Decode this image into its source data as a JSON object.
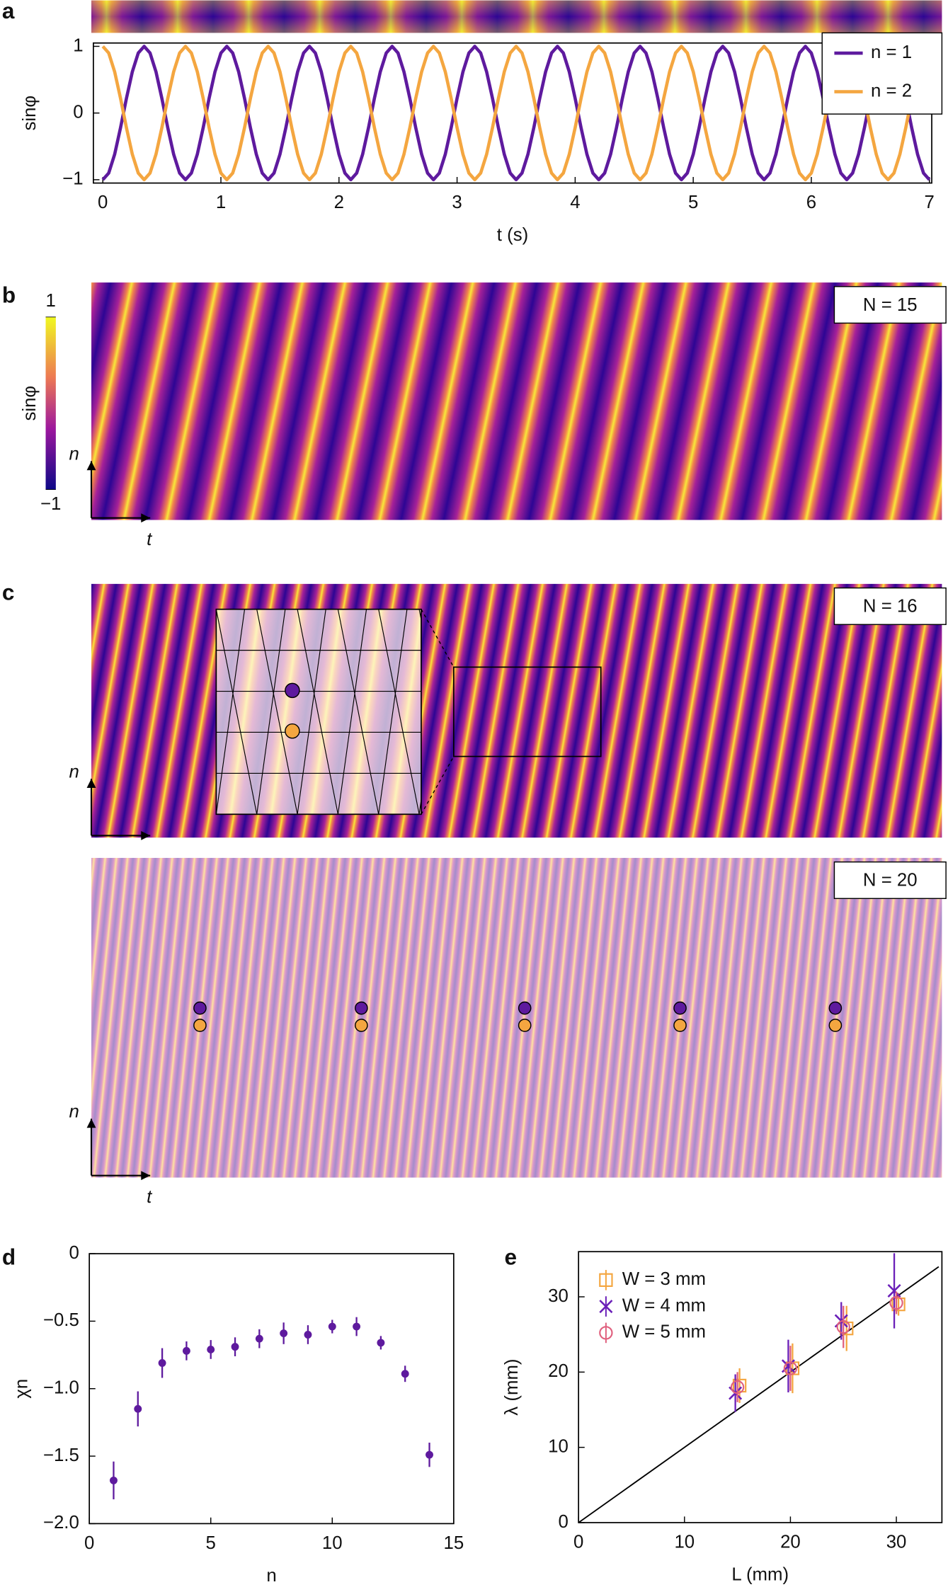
{
  "chart_data": [
    {
      "type": "line",
      "label": "a",
      "xlabel": "t (s)",
      "ylabel": "sinφ",
      "xlim": [
        -0.08,
        7.02
      ],
      "ylim": [
        -1.05,
        1.05
      ],
      "xticks": [
        0,
        1,
        2,
        3,
        4,
        5,
        6,
        7
      ],
      "yticks": [
        {
          "value": -1,
          "label": "−1"
        },
        0,
        1
      ],
      "legend": "upper right",
      "x": [
        0,
        0.05,
        0.1,
        0.15,
        0.2,
        0.25,
        0.3,
        0.35,
        0.4,
        0.45,
        0.5,
        0.55,
        0.6,
        0.65,
        0.7,
        0.75,
        0.8,
        0.85,
        0.9,
        0.95,
        1,
        1.05,
        1.1,
        1.15,
        1.2,
        1.25,
        1.3,
        1.35,
        1.4,
        1.45,
        1.5,
        1.55,
        1.6,
        1.65,
        1.7,
        1.75,
        1.8,
        1.85,
        1.9,
        1.95,
        2,
        2.05,
        2.1,
        2.15,
        2.2,
        2.25,
        2.3,
        2.35,
        2.4,
        2.45,
        2.5,
        2.55,
        2.6,
        2.65,
        2.7,
        2.75,
        2.8,
        2.85,
        2.9,
        2.95,
        3,
        3.05,
        3.1,
        3.15,
        3.2,
        3.25,
        3.3,
        3.35,
        3.4,
        3.45,
        3.5,
        3.55,
        3.6,
        3.65,
        3.7,
        3.75,
        3.8,
        3.85,
        3.9,
        3.95,
        4,
        4.05,
        4.1,
        4.15,
        4.2,
        4.25,
        4.3,
        4.35,
        4.4,
        4.45,
        4.5,
        4.55,
        4.6,
        4.65,
        4.7,
        4.75,
        4.8,
        4.85,
        4.9,
        4.95,
        5,
        5.05,
        5.1,
        5.15,
        5.2,
        5.25,
        5.3,
        5.35,
        5.4,
        5.45,
        5.5,
        5.55,
        5.6,
        5.65,
        5.7,
        5.75,
        5.8,
        5.85,
        5.9,
        5.95,
        6,
        6.05,
        6.1,
        6.15,
        6.2,
        6.25,
        6.3,
        6.35,
        6.4,
        6.45,
        6.5,
        6.55,
        6.6,
        6.65,
        6.7,
        6.75,
        6.8,
        6.85,
        6.9,
        6.95,
        7
      ],
      "series": [
        {
          "name": "n = 1",
          "color": "#5e1a9e",
          "values": [
            -1,
            -0.9,
            -0.62,
            -0.22,
            0.22,
            0.62,
            0.9,
            1,
            0.9,
            0.62,
            0.22,
            -0.22,
            -0.62,
            -0.9,
            -1,
            -0.9,
            -0.62,
            -0.22,
            0.22,
            0.62,
            0.9,
            1,
            0.9,
            0.62,
            0.22,
            -0.22,
            -0.62,
            -0.9,
            -1,
            -0.9,
            -0.62,
            -0.22,
            0.22,
            0.62,
            0.9,
            1,
            0.9,
            0.62,
            0.22,
            -0.22,
            -0.62,
            -0.9,
            -1,
            -0.9,
            -0.62,
            -0.22,
            0.22,
            0.62,
            0.9,
            1,
            0.9,
            0.62,
            0.22,
            -0.22,
            -0.62,
            -0.9,
            -1,
            -0.9,
            -0.62,
            -0.22,
            0.22,
            0.62,
            0.9,
            1,
            0.9,
            0.62,
            0.22,
            -0.22,
            -0.62,
            -0.9,
            -1,
            -0.9,
            -0.62,
            -0.22,
            0.22,
            0.62,
            0.9,
            1,
            0.9,
            0.62,
            0.22,
            -0.22,
            -0.62,
            -0.9,
            -1,
            -0.9,
            -0.62,
            -0.22,
            0.22,
            0.62,
            0.9,
            1,
            0.9,
            0.62,
            0.22,
            -0.22,
            -0.62,
            -0.9,
            -1,
            -0.9,
            -0.62,
            -0.22,
            0.22,
            0.62,
            0.9,
            1,
            0.9,
            0.62,
            0.22,
            -0.22,
            -0.62,
            -0.9,
            -1,
            -0.9,
            -0.62,
            -0.22,
            0.22,
            0.62,
            0.9,
            1,
            0.9,
            0.62,
            0.22,
            -0.22,
            -0.62,
            -0.9,
            -1,
            -0.9,
            -0.62,
            -0.22,
            0.22,
            0.62,
            0.9,
            1,
            0.9,
            0.62,
            0.22,
            -0.22,
            -0.62,
            -0.9,
            -1
          ]
        },
        {
          "name": "n = 2",
          "color": "#f4a640",
          "values": [
            1,
            0.9,
            0.62,
            0.22,
            -0.22,
            -0.62,
            -0.9,
            -1,
            -0.9,
            -0.62,
            -0.22,
            0.22,
            0.62,
            0.9,
            1,
            0.9,
            0.62,
            0.22,
            -0.22,
            -0.62,
            -0.9,
            -1,
            -0.9,
            -0.62,
            -0.22,
            0.22,
            0.62,
            0.9,
            1,
            0.9,
            0.62,
            0.22,
            -0.22,
            -0.62,
            -0.9,
            -1,
            -0.9,
            -0.62,
            -0.22,
            0.22,
            0.62,
            0.9,
            1,
            0.9,
            0.62,
            0.22,
            -0.22,
            -0.62,
            -0.9,
            -1,
            -0.9,
            -0.62,
            -0.22,
            0.22,
            0.62,
            0.9,
            1,
            0.9,
            0.62,
            0.22,
            -0.22,
            -0.62,
            -0.9,
            -1,
            -0.9,
            -0.62,
            -0.22,
            0.22,
            0.62,
            0.9,
            1,
            0.9,
            0.62,
            0.22,
            -0.22,
            -0.62,
            -0.9,
            -1,
            -0.9,
            -0.62,
            -0.22,
            0.22,
            0.62,
            0.9,
            1,
            0.9,
            0.62,
            0.22,
            -0.22,
            -0.62,
            -0.9,
            -1,
            -0.9,
            -0.62,
            -0.22,
            0.22,
            0.62,
            0.9,
            1,
            0.9,
            0.62,
            0.22,
            -0.22,
            -0.62,
            -0.9,
            -1,
            -0.9,
            -0.62,
            -0.22,
            0.22,
            0.62,
            0.9,
            1,
            0.9,
            0.62,
            0.22,
            -0.22,
            -0.62,
            -0.9,
            -1,
            -0.9,
            -0.62,
            -0.22,
            0.22,
            0.62,
            0.9,
            1,
            0.9,
            0.62,
            0.22,
            -0.22,
            -0.62,
            -0.9,
            -1,
            -0.9,
            -0.62,
            -0.22,
            0.22,
            0.62,
            0.9,
            1
          ]
        }
      ]
    },
    {
      "type": "heatmap",
      "label": "b",
      "annotation": "N = 15",
      "ylabel": "n",
      "xlabel": "t",
      "colorbar": {
        "label": "sinφ",
        "lim": [
          -1,
          1
        ],
        "ticks": [
          {
            "value": -1,
            "label": "−1"
          },
          1
        ]
      }
    },
    {
      "type": "heatmap",
      "label": "c",
      "annotation": "N = 16",
      "ylabel": "n"
    },
    {
      "type": "heatmap",
      "annotation": "N = 20",
      "ylabel": "n",
      "xlabel": "t"
    },
    {
      "type": "scatter",
      "label": "d",
      "xlabel": "n",
      "ylabel": "χn",
      "color": "#5e1a9e",
      "xlim": [
        0,
        15
      ],
      "ylim": [
        -2,
        0
      ],
      "xticks": [
        0,
        5,
        10,
        15
      ],
      "yticks": [
        {
          "value": -2,
          "label": "−2.0"
        },
        {
          "value": -1.5,
          "label": "−1.5"
        },
        {
          "value": -1,
          "label": "−1.0"
        },
        {
          "value": -0.5,
          "label": "−0.5"
        },
        0
      ],
      "x": [
        1,
        2,
        3,
        4,
        5,
        6,
        7,
        8,
        9,
        10,
        11,
        12,
        13,
        14
      ],
      "values": [
        -1.68,
        -1.15,
        -0.81,
        -0.72,
        -0.71,
        -0.69,
        -0.63,
        -0.59,
        -0.6,
        -0.54,
        -0.54,
        -0.66,
        -0.89,
        -1.49
      ],
      "errors": [
        0.14,
        0.13,
        0.11,
        0.07,
        0.07,
        0.07,
        0.07,
        0.08,
        0.07,
        0.05,
        0.07,
        0.05,
        0.06,
        0.09
      ]
    },
    {
      "type": "scatter",
      "label": "e",
      "xlabel": "L (mm)",
      "ylabel": "λ (mm)",
      "xlim": [
        0,
        34.3
      ],
      "ylim": [
        0,
        36
      ],
      "xticks": [
        0,
        10,
        20,
        30
      ],
      "yticks": [
        0,
        10,
        20,
        30
      ],
      "legend": "upper left",
      "line": {
        "x": [
          0,
          34
        ],
        "values": [
          0,
          34
        ],
        "color": "#000000"
      },
      "series": [
        {
          "name": "W = 3 mm",
          "marker": "square",
          "color": "#f4a640",
          "x": [
            15.2,
            20.2,
            25.3,
            30.2
          ],
          "values": [
            18.2,
            20.5,
            25.8,
            29
          ],
          "errors": [
            2.3,
            3.3,
            3,
            1.5
          ]
        },
        {
          "name": "W = 4 mm",
          "marker": "cross",
          "color": "#6a1fb8",
          "x": [
            14.8,
            19.8,
            24.8,
            29.8
          ],
          "values": [
            17.2,
            20.8,
            26.8,
            30.8
          ],
          "errors": [
            2.5,
            3.5,
            2.5,
            5
          ]
        },
        {
          "name": "W = 5 mm",
          "marker": "circle",
          "color": "#e0607e",
          "x": [
            15,
            20,
            25,
            30
          ],
          "values": [
            18,
            20.5,
            26,
            29.2
          ],
          "errors": [
            2,
            3,
            2.8,
            1.5
          ]
        }
      ]
    }
  ]
}
